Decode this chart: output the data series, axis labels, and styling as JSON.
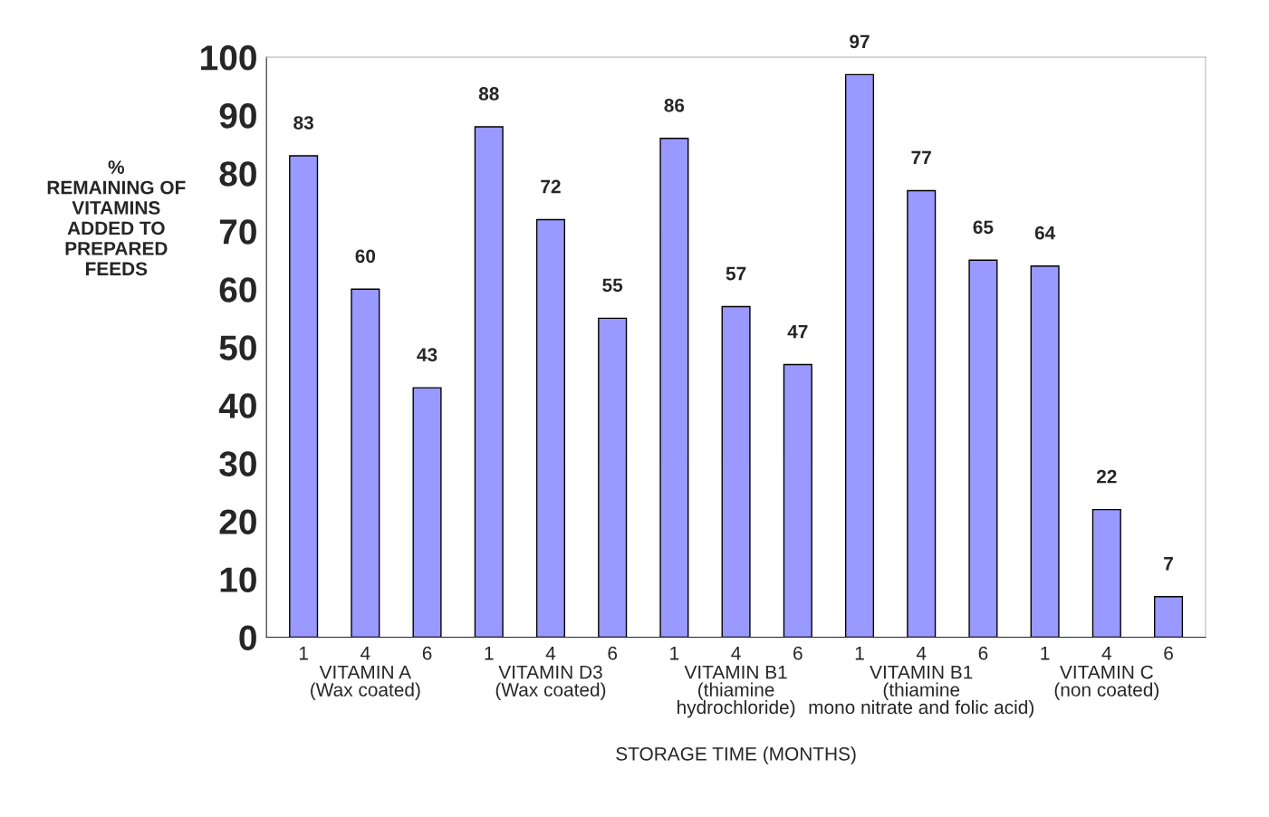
{
  "chart_data": {
    "type": "bar",
    "categories": [
      "1",
      "4",
      "6",
      "1",
      "4",
      "6",
      "1",
      "4",
      "6",
      "1",
      "4",
      "6",
      "1",
      "4",
      "6"
    ],
    "values": [
      83,
      60,
      43,
      88,
      72,
      55,
      86,
      57,
      47,
      97,
      77,
      65,
      64,
      22,
      7
    ],
    "color": "#9999ff",
    "ylim": [
      0,
      100
    ],
    "yticks": [
      0,
      10,
      20,
      30,
      40,
      50,
      60,
      70,
      80,
      90,
      100
    ],
    "ylabel": "%\nREMAINING OF\nVITAMINS\nADDED TO\nPREPARED\nFEEDS",
    "xlabel": "STORAGE TIME (MONTHS)",
    "annotations": [
      "VITAMIN A\n(Wax coated)",
      "VITAMIN D3\n(Wax coated)",
      "VITAMIN B1\n(thiamine\nhydrochloride)",
      "VITAMIN B1\n(thiamine\nmono nitrate and folic acid)",
      "VITAMIN C\n(non coated)"
    ],
    "data_labels": true,
    "grid": false,
    "legend": false
  }
}
